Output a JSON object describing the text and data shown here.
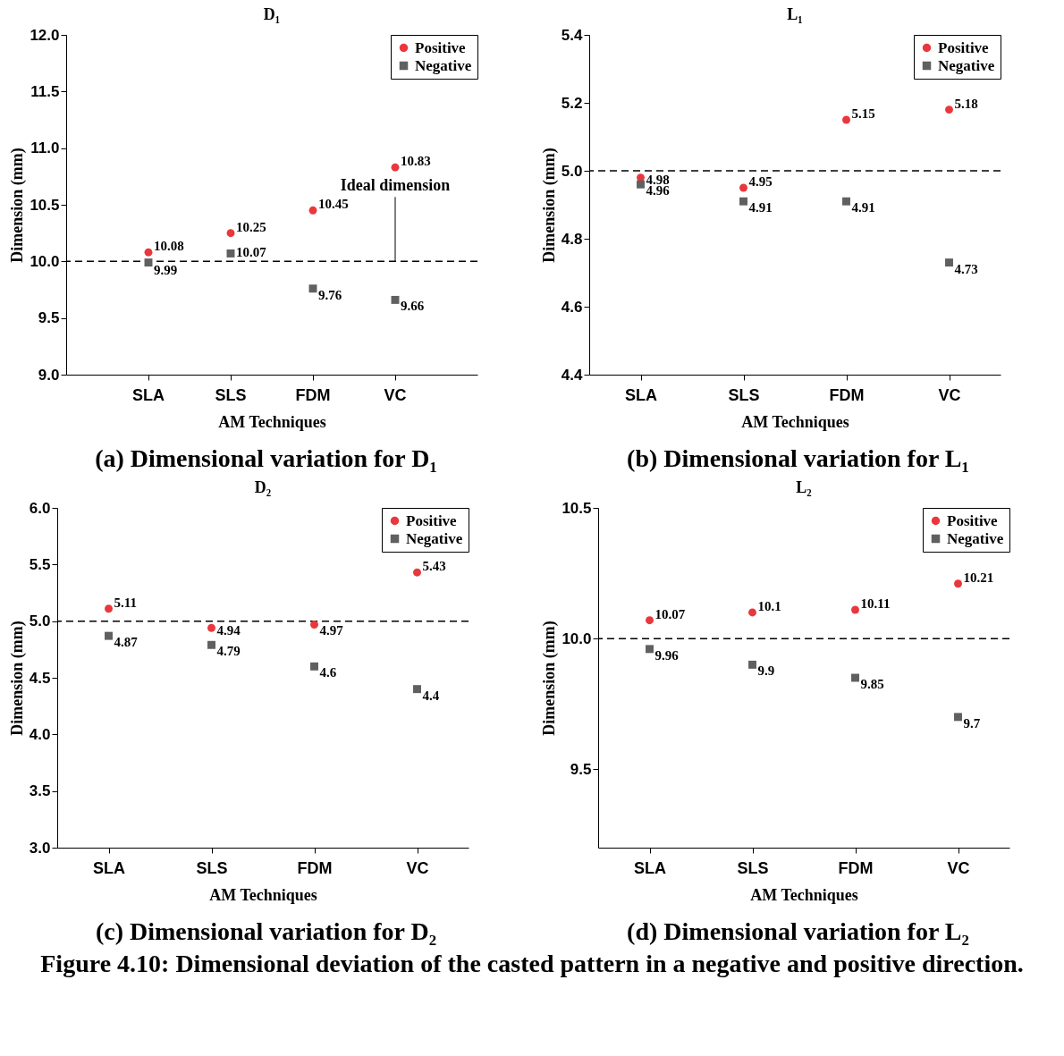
{
  "chart_data": [
    {
      "type": "scatter",
      "title": "D₁",
      "xlabel": "AM Techniques",
      "ylabel": "Dimension (mm)",
      "categories": [
        "SLA",
        "SLS",
        "FDM",
        "VC"
      ],
      "series": [
        {
          "name": "Positive",
          "color": "#e8383d",
          "marker": "circle",
          "values": [
            10.08,
            10.25,
            10.45,
            10.83
          ]
        },
        {
          "name": "Negative",
          "color": "#606060",
          "marker": "square",
          "values": [
            9.99,
            10.07,
            9.76,
            9.66
          ]
        }
      ],
      "ylim": [
        9,
        12
      ],
      "yticks": [
        {
          "value": 9,
          "label": "9.0"
        },
        9.5,
        {
          "value": 10,
          "label": "10.0"
        },
        10.5,
        {
          "value": 11,
          "label": "11.0"
        },
        11.5,
        {
          "value": 12,
          "label": "12.0"
        }
      ],
      "ref_lines": [
        {
          "axis": "y",
          "value": 10,
          "line_style": "dashed"
        }
      ],
      "data_labels": true,
      "legend": "top right",
      "grid": false,
      "annotations": [
        "(a) Dimensional variation for D₁",
        {
          "text": "Ideal dimension",
          "x": "VC",
          "y": 10
        }
      ]
    },
    {
      "type": "scatter",
      "title": "L₁",
      "xlabel": "AM Techniques",
      "ylabel": "Dimension (mm)",
      "categories": [
        "SLA",
        "SLS",
        "FDM",
        "VC"
      ],
      "series": [
        {
          "name": "Positive",
          "color": "#e8383d",
          "marker": "circle",
          "values": [
            4.98,
            4.95,
            5.15,
            5.18
          ]
        },
        {
          "name": "Negative",
          "color": "#606060",
          "marker": "square",
          "values": [
            4.96,
            4.91,
            4.91,
            4.73
          ]
        }
      ],
      "ylim": [
        4.4,
        5.4
      ],
      "yticks": [
        4.4,
        4.6,
        4.8,
        {
          "value": 5,
          "label": "5.0"
        },
        5.2,
        5.4
      ],
      "ref_lines": [
        {
          "axis": "y",
          "value": 5,
          "line_style": "dashed"
        }
      ],
      "data_labels": true,
      "legend": "top right",
      "grid": false,
      "annotations": [
        "(b) Dimensional variation for L₁"
      ]
    },
    {
      "type": "scatter",
      "title": "D₂",
      "xlabel": "AM Techniques",
      "ylabel": "Dimension (mm)",
      "categories": [
        "SLA",
        "SLS",
        "FDM",
        "VC"
      ],
      "series": [
        {
          "name": "Positive",
          "color": "#e8383d",
          "marker": "circle",
          "values": [
            5.11,
            4.94,
            4.97,
            5.43
          ]
        },
        {
          "name": "Negative",
          "color": "#606060",
          "marker": "square",
          "values": [
            4.87,
            4.79,
            4.6,
            4.4
          ]
        }
      ],
      "ylim": [
        3,
        6
      ],
      "yticks": [
        {
          "value": 3,
          "label": "3.0"
        },
        3.5,
        {
          "value": 4,
          "label": "4.0"
        },
        4.5,
        {
          "value": 5,
          "label": "5.0"
        },
        5.5,
        {
          "value": 6,
          "label": "6.0"
        }
      ],
      "ref_lines": [
        {
          "axis": "y",
          "value": 5,
          "line_style": "dashed"
        }
      ],
      "data_labels": true,
      "legend": "top right",
      "grid": false,
      "annotations": [
        "(c) Dimensional variation for D₂"
      ]
    },
    {
      "type": "scatter",
      "title": "L₂",
      "xlabel": "AM Techniques",
      "ylabel": "Dimension (mm)",
      "categories": [
        "SLA",
        "SLS",
        "FDM",
        "VC"
      ],
      "series": [
        {
          "name": "Positive",
          "color": "#e8383d",
          "marker": "circle",
          "values": [
            10.07,
            10.1,
            10.11,
            10.21
          ]
        },
        {
          "name": "Negative",
          "color": "#606060",
          "marker": "square",
          "values": [
            9.96,
            9.9,
            9.85,
            9.7
          ]
        }
      ],
      "ylim": [
        9.2,
        10.5
      ],
      "yticks": [
        9.5,
        {
          "value": 10,
          "label": "10.0"
        },
        10.5
      ],
      "ref_lines": [
        {
          "axis": "y",
          "value": 10,
          "line_style": "dashed"
        }
      ],
      "data_labels": true,
      "legend": "top right",
      "grid": false,
      "annotations": [
        "(d) Dimensional variation for L₂",
        "Figure 4.10: Dimensional deviation of the casted pattern in a negative and positive direction."
      ]
    }
  ]
}
